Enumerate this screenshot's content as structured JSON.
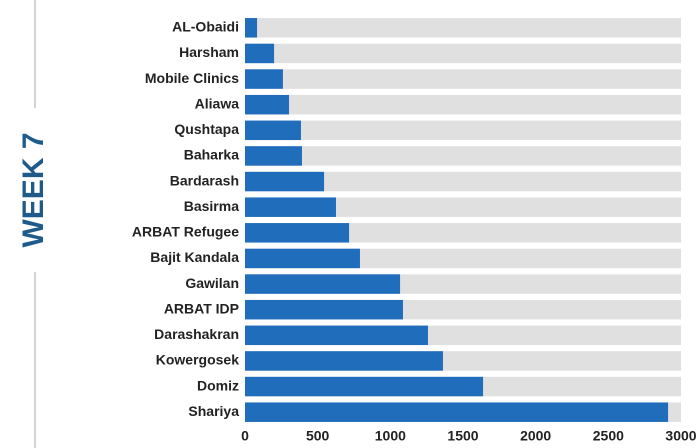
{
  "chart_data": {
    "type": "bar",
    "orientation": "horizontal",
    "side_label": "WEEK 7",
    "categories": [
      "AL-Obaidi",
      "Harsham",
      "Mobile Clinics",
      "Aliawa",
      "Qushtapa",
      "Baharka",
      "Bardarash",
      "Basirma",
      "ARBAT Refugee",
      "Bajit Kandala",
      "Gawilan",
      "ARBAT IDP",
      "Darashakran",
      "Kowergosek",
      "Domiz",
      "Shariya"
    ],
    "values": [
      83,
      200,
      261,
      303,
      385,
      392,
      544,
      626,
      716,
      791,
      1067,
      1087,
      1259,
      1362,
      1638,
      2911
    ],
    "color": "#1f6dbb",
    "background_color": "#e0e0e0",
    "xlim": [
      0,
      3000
    ],
    "xticks": [
      0,
      500,
      1000,
      1500,
      2000,
      2500,
      3000
    ]
  }
}
